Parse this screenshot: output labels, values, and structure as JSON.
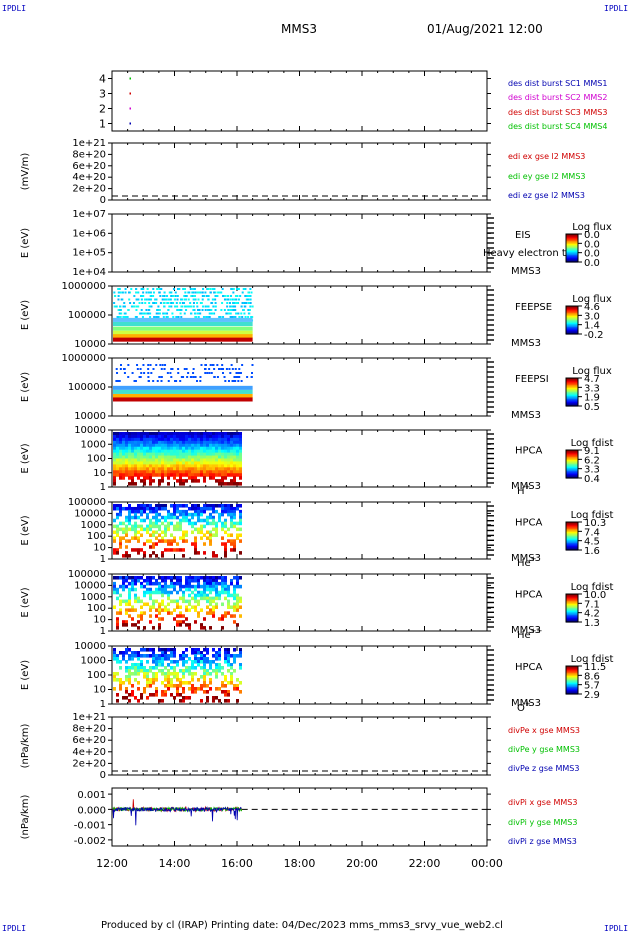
{
  "corner_label": "IPDLI",
  "header": {
    "spacecraft": "MMS3",
    "datetime": "01/Aug/2021 12:00"
  },
  "footer": {
    "text": "Produced by cl (IRAP)   Printing date: 04/Dec/2023   mms_mms3_srvy_vue_web2.cl"
  },
  "chart_data": [
    {
      "type": "scatter",
      "id": "p1",
      "yticks": [
        "1",
        "2",
        "3",
        "4"
      ],
      "ylim": [
        0.5,
        4.5
      ],
      "series": [
        {
          "name": "des dist burst SC1 MMS1",
          "color": "#0000b0",
          "x": [
            0.02
          ],
          "y": [
            1
          ]
        },
        {
          "name": "des dist burst SC2 MMS2",
          "color": "#d000d0",
          "x": [
            0.02
          ],
          "y": [
            2
          ]
        },
        {
          "name": "des dist burst SC3 MMS3",
          "color": "#d00000",
          "x": [
            0.02
          ],
          "y": [
            3
          ]
        },
        {
          "name": "des dist burst SC4 MMS4",
          "color": "#00c000",
          "x": [
            0.02
          ],
          "y": [
            4
          ]
        }
      ]
    },
    {
      "type": "line",
      "id": "p2",
      "ylabel": "(mV/m)",
      "yticks": [
        "0",
        "2e+20",
        "4e+20",
        "6e+20",
        "8e+20",
        "1e+21"
      ],
      "series": [
        {
          "name": "edi ex gse l2 MMS3",
          "color": "#d00000"
        },
        {
          "name": "edi ey gse l2 MMS3",
          "color": "#00c000"
        },
        {
          "name": "edi ez gse l2 MMS3",
          "color": "#0000b0"
        }
      ]
    },
    {
      "type": "heatmap",
      "id": "p3",
      "ylabel": "E (eV)",
      "yticks": [
        "1e+04",
        "1e+05",
        "1e+06",
        "1e+07"
      ],
      "inst": "EIS",
      "sc": "MMS3",
      "overlay": "Heavy electron to",
      "cbar_title": "Log flux",
      "cbar_ticks": [
        "0.0",
        "0.0",
        "0.0",
        "0.0"
      ]
    },
    {
      "type": "heatmap",
      "id": "p4",
      "ylabel": "E (eV)",
      "yticks": [
        "10000",
        "100000",
        "1000000"
      ],
      "inst": "FEEPSE",
      "sc": "MMS3",
      "cbar_title": "Log flux",
      "cbar_ticks": [
        "4.6",
        "3.0",
        "1.4",
        "-0.2"
      ],
      "xend": "16:30"
    },
    {
      "type": "heatmap",
      "id": "p5",
      "ylabel": "E (eV)",
      "yticks": [
        "10000",
        "100000",
        "1000000"
      ],
      "inst": "FEEPSI",
      "sc": "MMS3",
      "cbar_title": "Log flux",
      "cbar_ticks": [
        "4.7",
        "3.3",
        "1.9",
        "0.5"
      ],
      "xend": "16:30"
    },
    {
      "type": "heatmap",
      "id": "p6",
      "ylabel": "E (eV)",
      "yticks": [
        "1",
        "10",
        "100",
        "1000",
        "10000"
      ],
      "inst": "HPCA",
      "sc": "MMS3",
      "species": "H",
      "charge": "+",
      "cbar_title": "Log fdist",
      "cbar_ticks": [
        "9.1",
        "6.2",
        "3.3",
        "0.4"
      ],
      "xend": "16:10"
    },
    {
      "type": "heatmap",
      "id": "p7",
      "ylabel": "E (eV)",
      "yticks": [
        "1",
        "10",
        "100",
        "1000",
        "10000",
        "100000"
      ],
      "inst": "HPCA",
      "sc": "MMS3",
      "species": "He",
      "charge": "+",
      "cbar_title": "Log fdist",
      "cbar_ticks": [
        "10.3",
        "7.4",
        "4.5",
        "1.6"
      ],
      "xend": "16:10"
    },
    {
      "type": "heatmap",
      "id": "p8",
      "ylabel": "E (eV)",
      "yticks": [
        "1",
        "10",
        "100",
        "1000",
        "10000",
        "100000"
      ],
      "inst": "HPCA",
      "sc": "MMS3",
      "species": "He",
      "charge": "++",
      "cbar_title": "Log fdist",
      "cbar_ticks": [
        "10.0",
        "7.1",
        "4.2",
        "1.3"
      ],
      "xend": "16:10"
    },
    {
      "type": "heatmap",
      "id": "p9",
      "ylabel": "E (eV)",
      "yticks": [
        "1",
        "10",
        "100",
        "1000",
        "10000"
      ],
      "inst": "HPCA",
      "sc": "MMS3",
      "species": "O",
      "charge": "+",
      "cbar_title": "Log fdist",
      "cbar_ticks": [
        "11.5",
        "8.6",
        "5.7",
        "2.9"
      ],
      "xend": "16:10"
    },
    {
      "type": "line",
      "id": "p10",
      "ylabel": "(nPa/km)",
      "yticks": [
        "0",
        "2e+20",
        "4e+20",
        "6e+20",
        "8e+20",
        "1e+21"
      ],
      "series": [
        {
          "name": "divPe x gse MMS3",
          "color": "#d00000"
        },
        {
          "name": "divPe y gse MMS3",
          "color": "#00c000"
        },
        {
          "name": "divPe z gse MMS3",
          "color": "#0000b0"
        }
      ]
    },
    {
      "type": "line",
      "id": "p11",
      "ylabel": "(nPa/km)",
      "yticks": [
        "-0.002",
        "-0.001",
        "0.000",
        "0.001"
      ],
      "ylim": [
        -0.0024,
        0.0014
      ],
      "series": [
        {
          "name": "divPi x gse MMS3",
          "color": "#d00000"
        },
        {
          "name": "divPi y gse MMS3",
          "color": "#00c000"
        },
        {
          "name": "divPi z gse MMS3",
          "color": "#0000b0"
        }
      ]
    }
  ],
  "xaxis": {
    "ticks": [
      "12:00",
      "14:00",
      "16:00",
      "18:00",
      "20:00",
      "22:00",
      "00:00"
    ]
  }
}
